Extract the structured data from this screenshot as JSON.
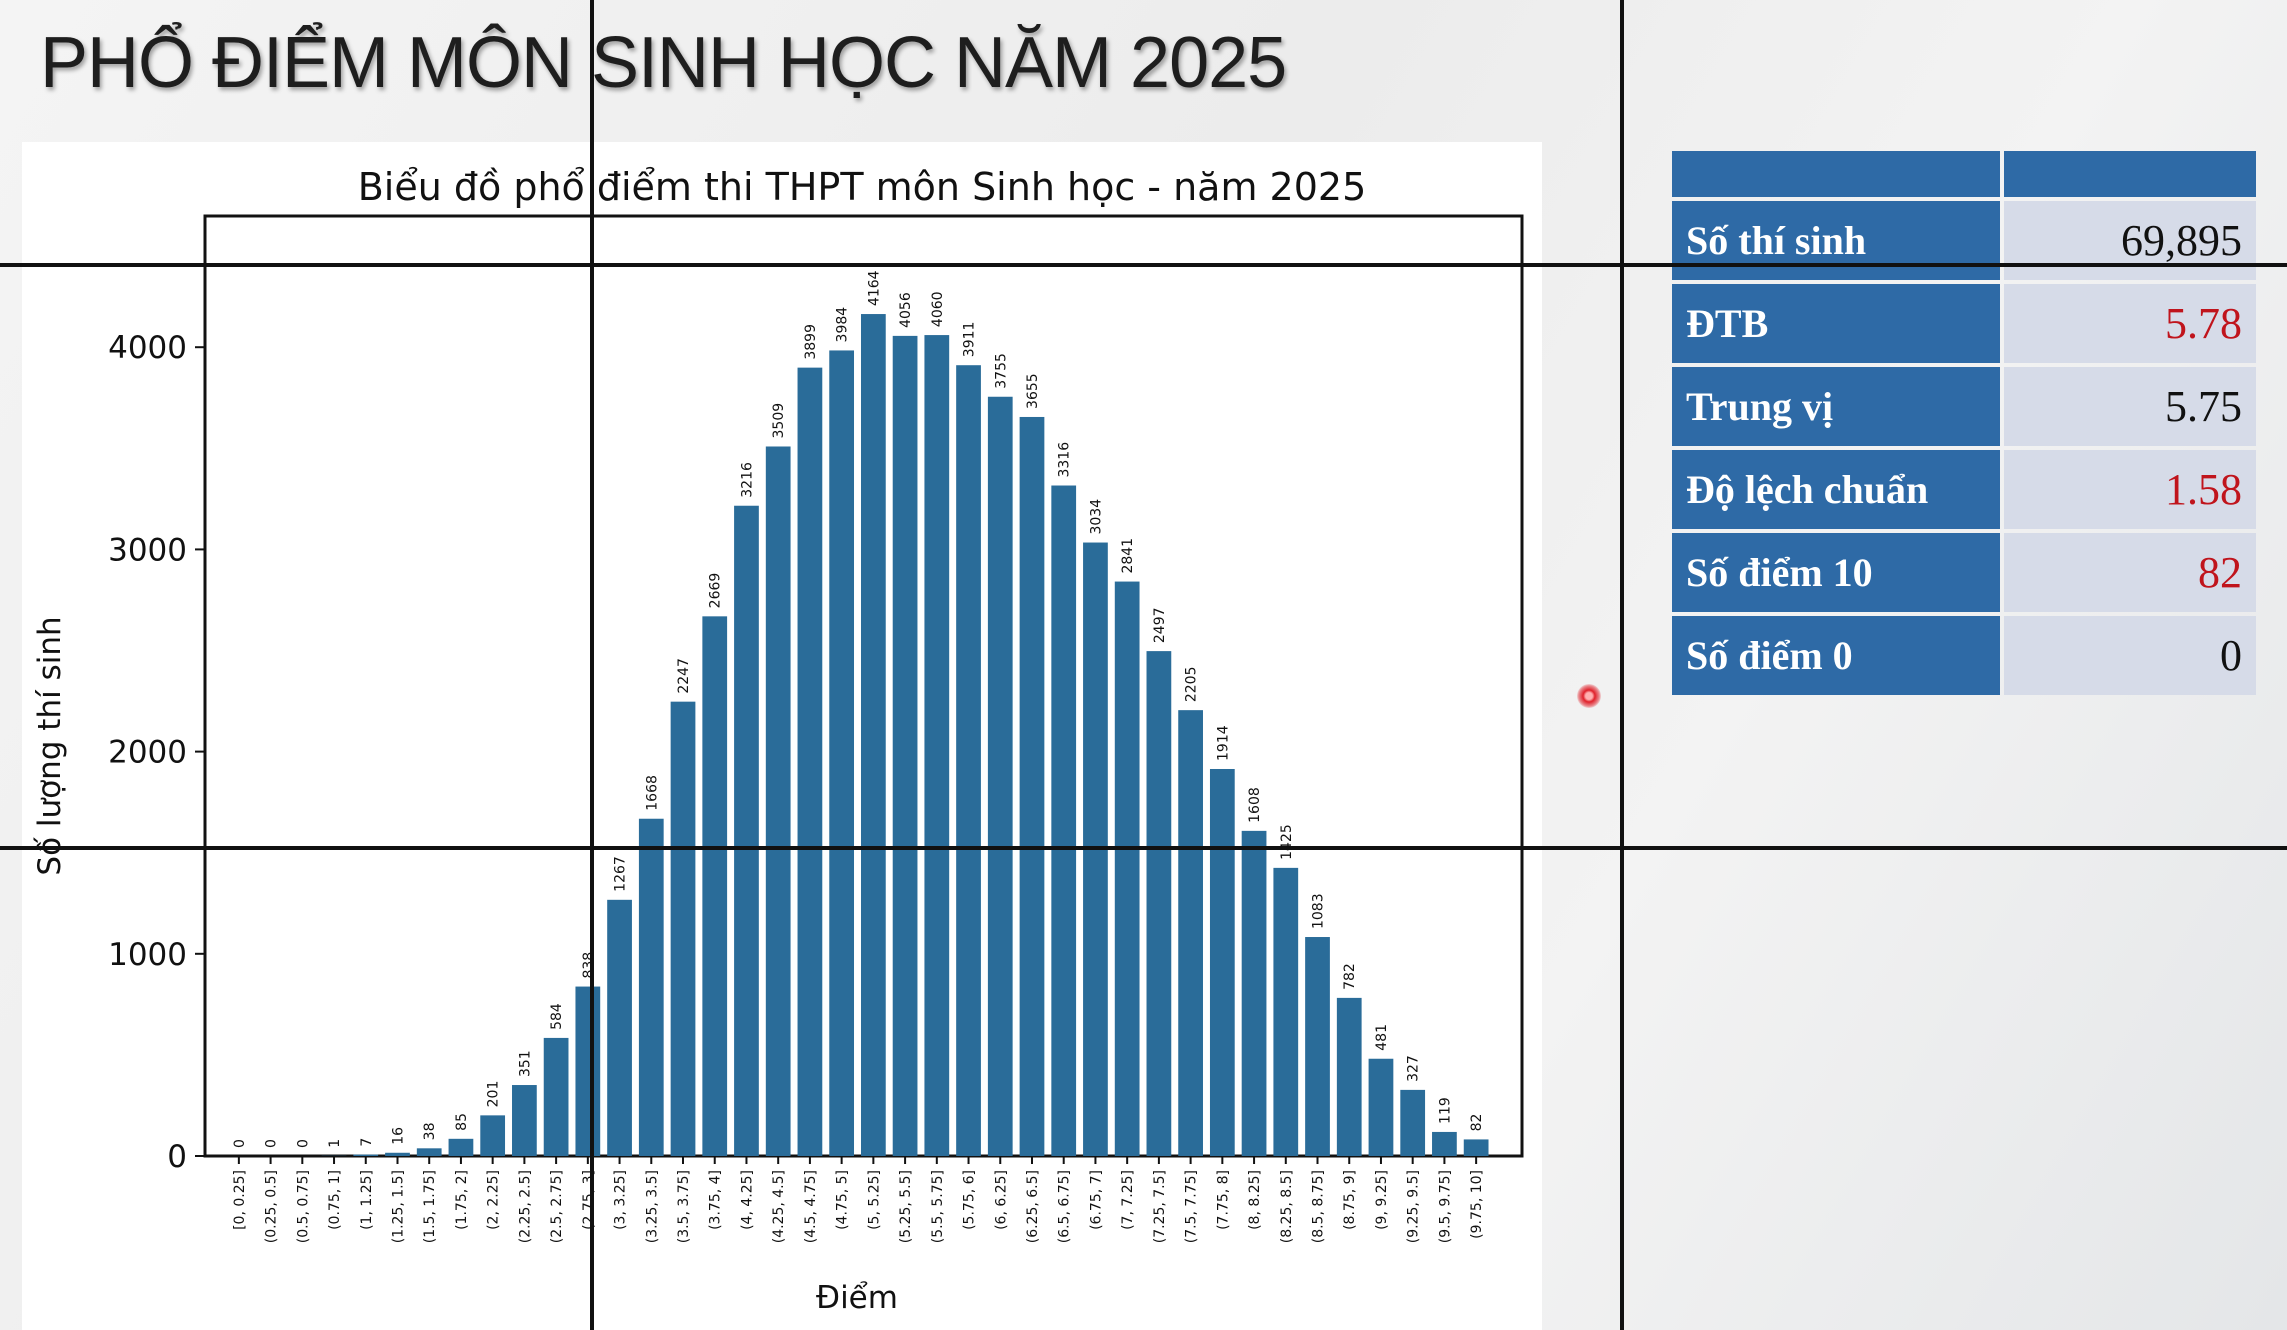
{
  "slide": {
    "title": "PHỔ ĐIỂM MÔN SINH HỌC NĂM 2025"
  },
  "stats": [
    {
      "label": "Số thí sinh",
      "value": "69,895",
      "color": "#111111"
    },
    {
      "label": "ĐTB",
      "value": "5.78",
      "color": "#c0141c"
    },
    {
      "label": "Trung vị",
      "value": "5.75",
      "color": "#111111"
    },
    {
      "label": "Độ lệch chuẩn",
      "value": "1.58",
      "color": "#c0141c"
    },
    {
      "label": "Số điểm 10",
      "value": "82",
      "color": "#c0141c"
    },
    {
      "label": "Số điểm 0",
      "value": "0",
      "color": "#111111"
    }
  ],
  "chart_data": {
    "type": "bar",
    "title": "Biểu đồ phổ điểm thi THPT môn Sinh học - năm 2025",
    "xlabel": "Điểm",
    "ylabel": "Số lượng thí sinh",
    "ylim": [
      0,
      4550
    ],
    "yticks": [
      0,
      1000,
      2000,
      3000,
      4000
    ],
    "bar_color": "#2a6c99",
    "categories": [
      "[0, 0.25]",
      "(0.25, 0.5]",
      "(0.5, 0.75]",
      "(0.75, 1]",
      "(1, 1.25]",
      "(1.25, 1.5]",
      "(1.5, 1.75]",
      "(1.75, 2]",
      "(2, 2.25]",
      "(2.25, 2.5]",
      "(2.5, 2.75]",
      "(2.75, 3]",
      "(3, 3.25]",
      "(3.25, 3.5]",
      "(3.5, 3.75]",
      "(3.75, 4]",
      "(4, 4.25]",
      "(4.25, 4.5]",
      "(4.5, 4.75]",
      "(4.75, 5]",
      "(5, 5.25]",
      "(5.25, 5.5]",
      "(5.5, 5.75]",
      "(5.75, 6]",
      "(6, 6.25]",
      "(6.25, 6.5]",
      "(6.5, 6.75]",
      "(6.75, 7]",
      "(7, 7.25]",
      "(7.25, 7.5]",
      "(7.5, 7.75]",
      "(7.75, 8]",
      "(8, 8.25]",
      "(8.25, 8.5]",
      "(8.5, 8.75]",
      "(8.75, 9]",
      "(9, 9.25]",
      "(9.25, 9.5]",
      "(9.5, 9.75]",
      "(9.75, 10]"
    ],
    "values": [
      0,
      0,
      0,
      1,
      7,
      16,
      38,
      85,
      201,
      351,
      584,
      838,
      1267,
      1668,
      2247,
      2669,
      3216,
      3509,
      3899,
      3984,
      4164,
      4056,
      4060,
      3911,
      3755,
      3655,
      3316,
      3034,
      2841,
      2497,
      2205,
      1914,
      1608,
      1425,
      1083,
      782,
      481,
      327,
      119,
      82
    ],
    "grid": false
  }
}
